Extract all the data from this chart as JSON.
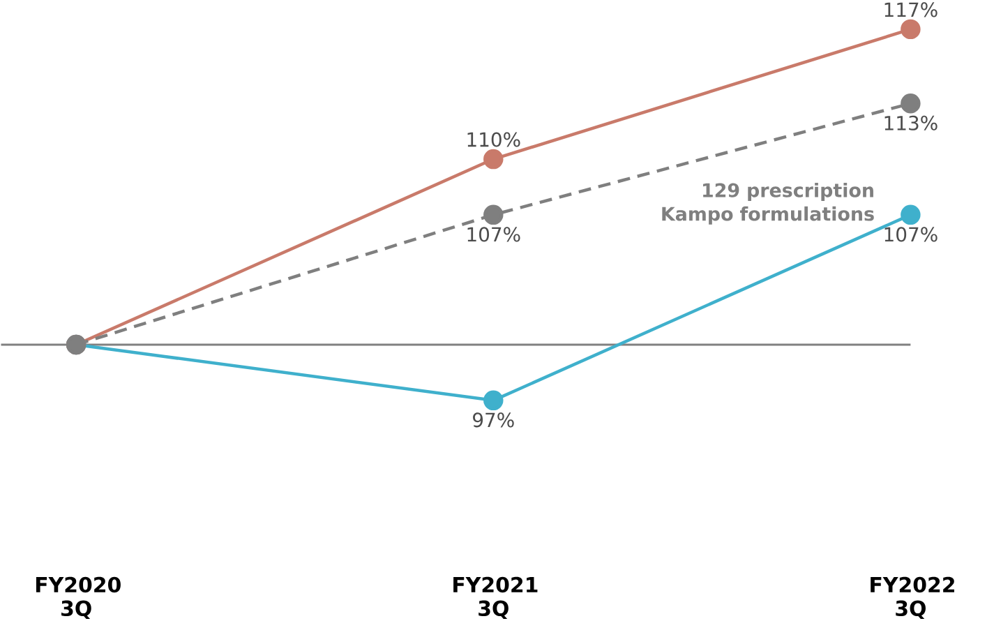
{
  "chart_data": {
    "type": "line",
    "categories": [
      "FY2020 3Q",
      "FY2021 3Q",
      "FY2022 3Q"
    ],
    "series": [
      {
        "color": "#c97a6a",
        "values": [
          100,
          110,
          117
        ],
        "value_labels": [
          null,
          "110%",
          "117%"
        ],
        "line_style": "solid"
      },
      {
        "name": "129 prescription Kampo formulations",
        "color": "#7f7f7f",
        "values": [
          100,
          107,
          113
        ],
        "value_labels": [
          null,
          "107%",
          "113%"
        ],
        "line_style": "dashed"
      },
      {
        "color": "#3fb0cc",
        "values": [
          100,
          97,
          107
        ],
        "value_labels": [
          null,
          "97%",
          "107%"
        ],
        "line_style": "solid"
      }
    ],
    "marker": "circle",
    "grid": false,
    "ref_lines": [
      {
        "axis": "y",
        "value": 100,
        "color": "#808080"
      }
    ]
  }
}
